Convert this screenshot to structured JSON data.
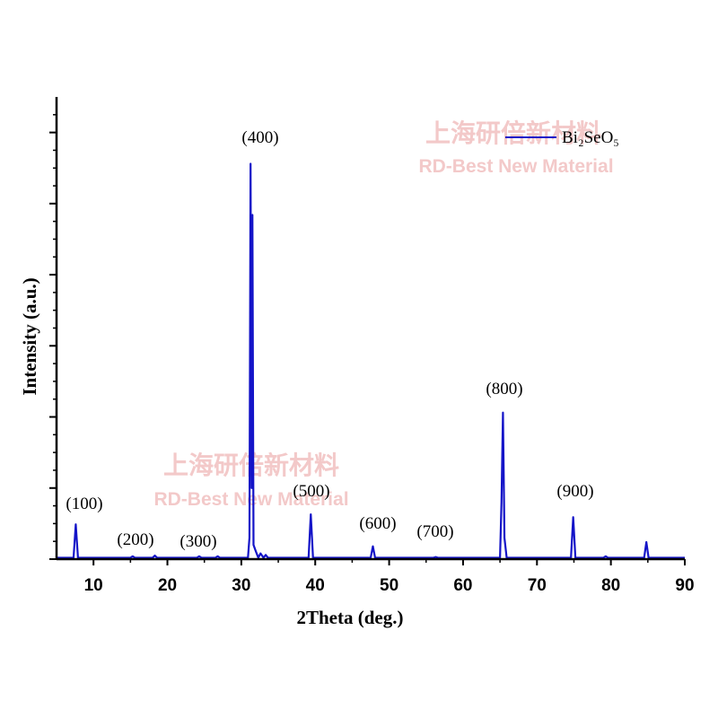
{
  "chart_data": {
    "type": "line",
    "xlabel": "2Theta (deg.)",
    "ylabel": "Intensity (a.u.)",
    "xlim": [
      5,
      90
    ],
    "xticks": [
      10,
      20,
      30,
      40,
      50,
      60,
      70,
      80,
      90
    ],
    "ylim": [
      0,
      6.5
    ],
    "yticks": [
      0,
      1,
      2,
      3,
      4,
      5,
      6
    ],
    "legend": "upper right",
    "watermark": [
      "上海研倍新材料",
      "RD-Best New Material"
    ],
    "annotations": [
      "(100)",
      "(200)",
      "(300)",
      "(400)",
      "(500)",
      "(600)",
      "(700)",
      "(800)",
      "(900)"
    ],
    "series": [
      {
        "name": "Bi₂SeO₅",
        "color": "#1414c8",
        "x": [
          5,
          7.3,
          7.6,
          7.9,
          15,
          15.3,
          15.6,
          18,
          18.3,
          18.6,
          24,
          24.3,
          24.6,
          26.5,
          26.8,
          27.1,
          30.9,
          31.1,
          31.25,
          31.4,
          31.5,
          31.65,
          32.0,
          32.3,
          32.6,
          33.0,
          33.3,
          33.6,
          39.1,
          39.4,
          39.7,
          47.5,
          47.8,
          48.1,
          56,
          56.3,
          56.6,
          65.0,
          65.2,
          65.4,
          65.6,
          65.9,
          74.6,
          74.9,
          75.2,
          79,
          79.3,
          79.6,
          84.5,
          84.8,
          85.1,
          90
        ],
        "values": [
          0.02,
          0.02,
          0.49,
          0.02,
          0.02,
          0.04,
          0.02,
          0.02,
          0.05,
          0.02,
          0.02,
          0.04,
          0.02,
          0.02,
          0.04,
          0.02,
          0.02,
          0.3,
          5.56,
          1.0,
          4.84,
          0.2,
          0.1,
          0.02,
          0.08,
          0.02,
          0.06,
          0.02,
          0.02,
          0.63,
          0.02,
          0.02,
          0.18,
          0.02,
          0.02,
          0.03,
          0.02,
          0.02,
          0.8,
          2.06,
          0.3,
          0.02,
          0.02,
          0.59,
          0.02,
          0.02,
          0.04,
          0.02,
          0.02,
          0.24,
          0.02,
          0.02
        ]
      }
    ]
  }
}
